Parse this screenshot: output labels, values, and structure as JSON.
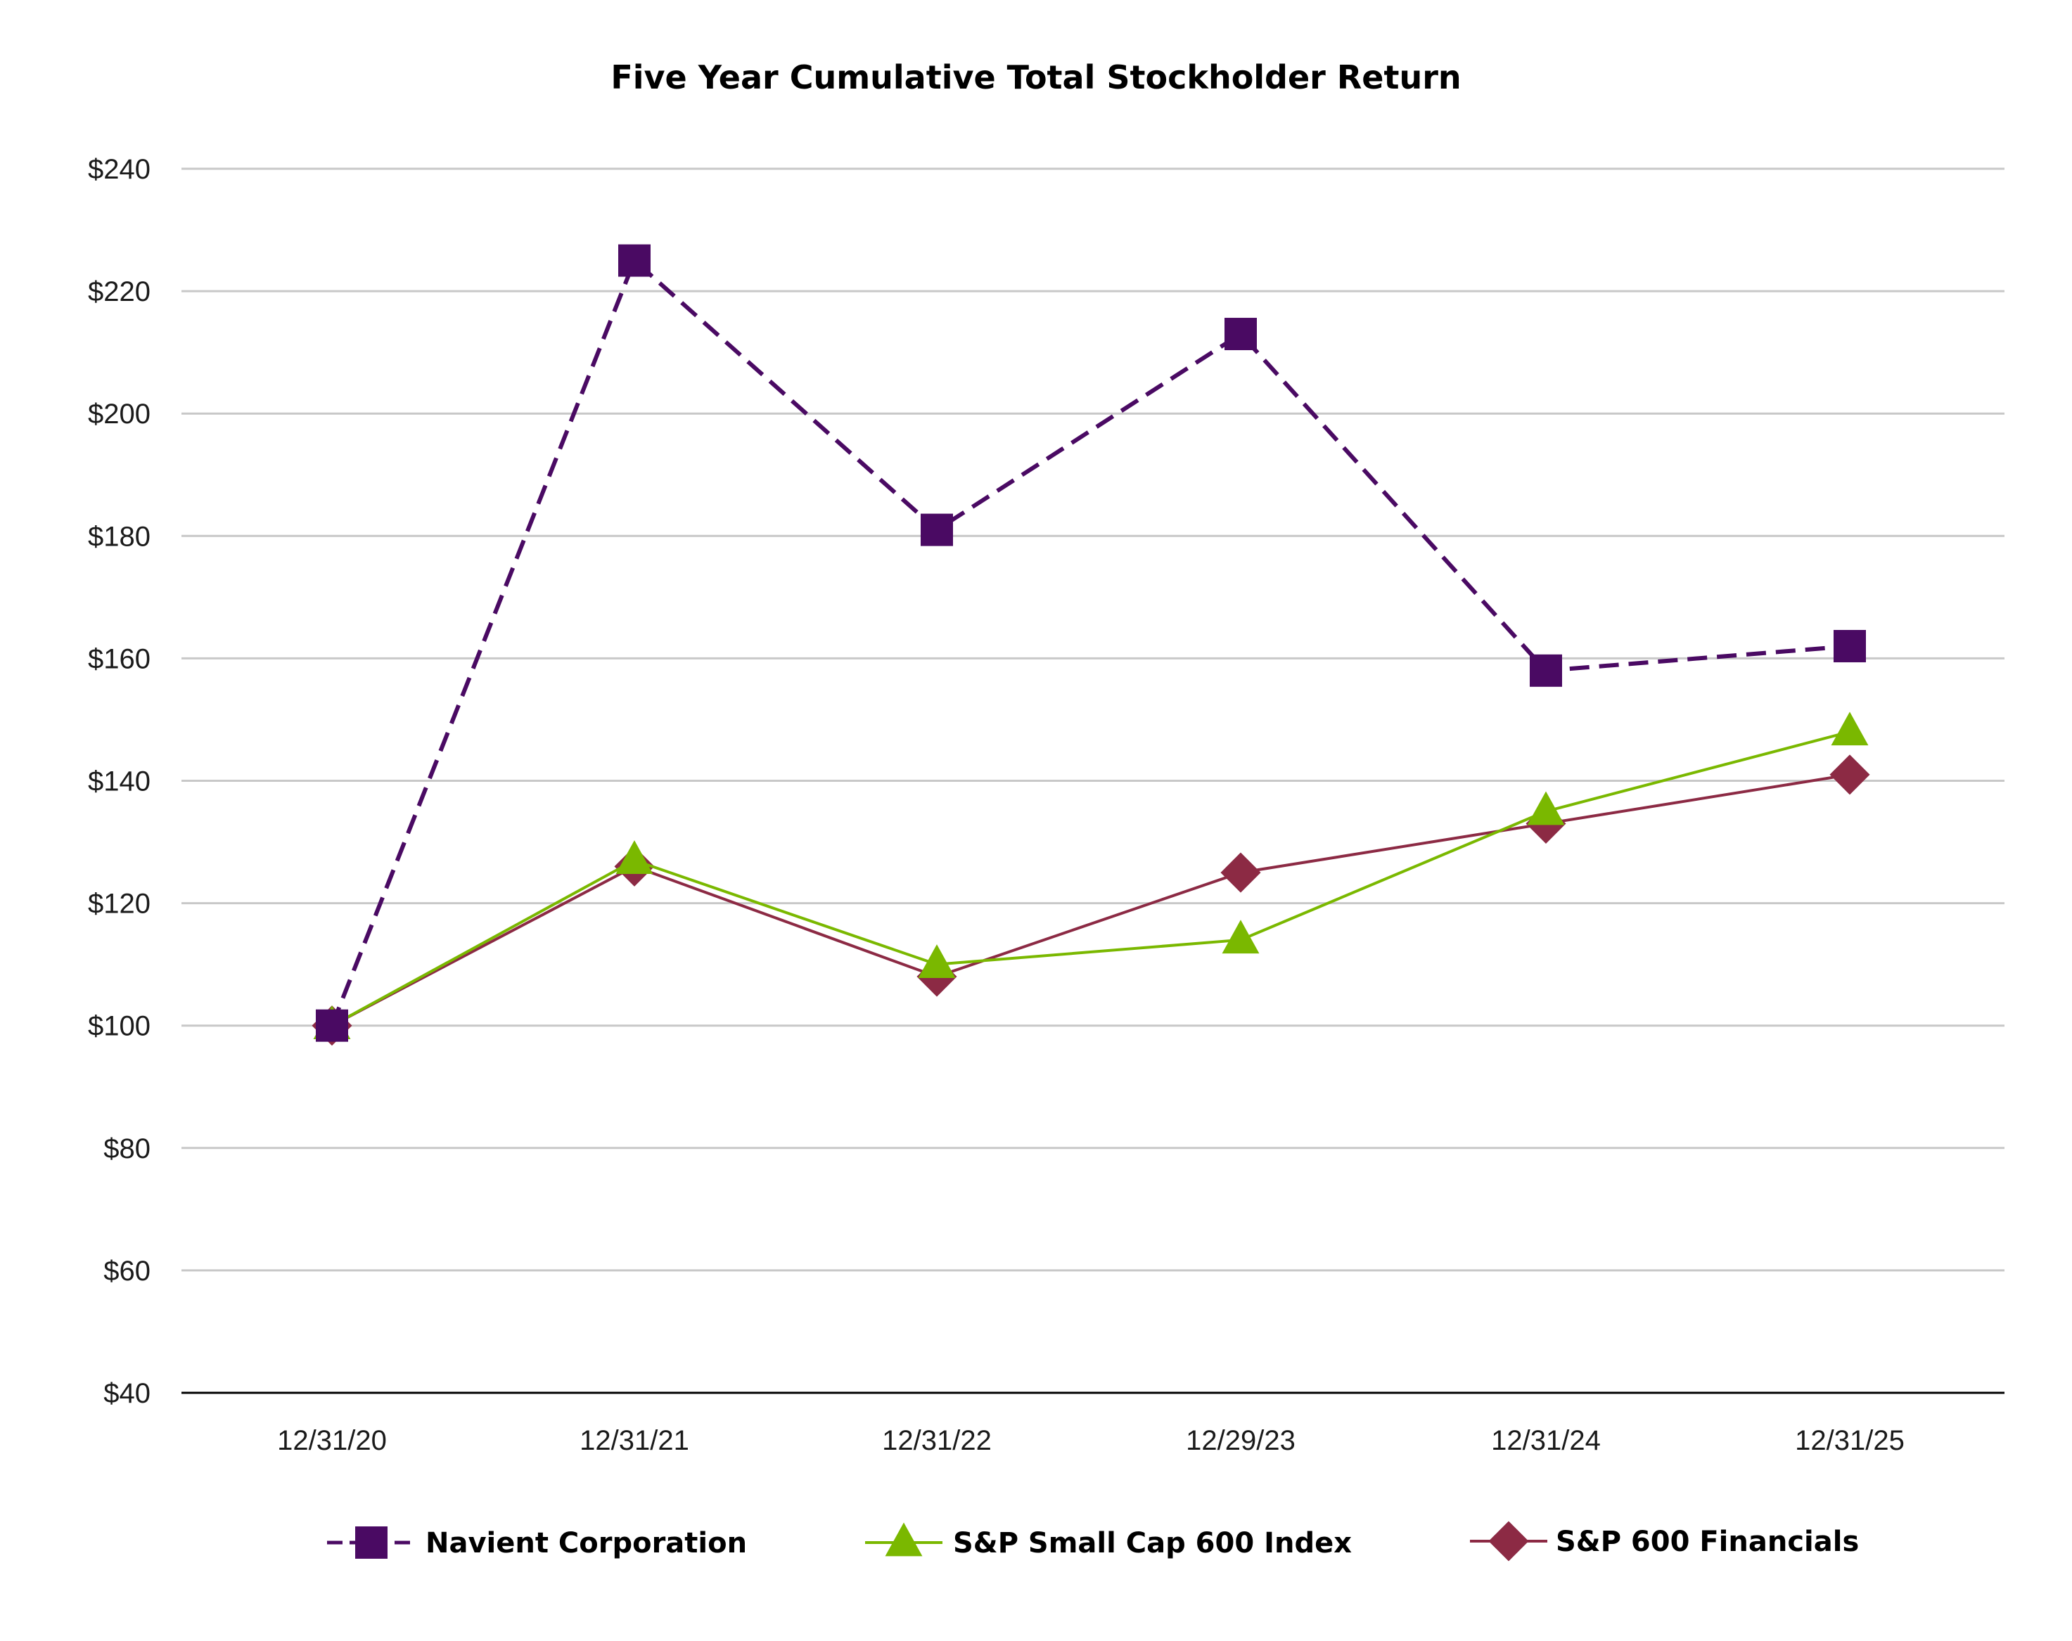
{
  "chart_data": {
    "type": "line",
    "title": "Five Year Cumulative Total Stockholder Return",
    "xlabel": "",
    "ylabel": "",
    "categories": [
      "12/31/20",
      "12/31/21",
      "12/31/22",
      "12/29/23",
      "12/31/24",
      "12/31/25"
    ],
    "ylim": [
      40,
      240
    ],
    "yticks": [
      40,
      60,
      80,
      100,
      120,
      140,
      160,
      180,
      200,
      220,
      240
    ],
    "ytick_labels": [
      "$40",
      "$60",
      "$80",
      "$100",
      "$120",
      "$140",
      "$160",
      "$180",
      "$200",
      "$220",
      "$240"
    ],
    "grid": true,
    "legend_position": "bottom",
    "series": [
      {
        "name": "Navient Corporation",
        "values": [
          100,
          225,
          181,
          213,
          158,
          162
        ],
        "color": "#4a0a63",
        "marker": "square",
        "line_style": "dashed"
      },
      {
        "name": "S&P Small Cap 600 Index",
        "values": [
          100,
          127,
          110,
          114,
          135,
          148
        ],
        "color": "#7ab800",
        "marker": "triangle",
        "line_style": "solid"
      },
      {
        "name": "S&P 600 Financials",
        "values": [
          100,
          126,
          108,
          125,
          133,
          141
        ],
        "color": "#8c2a44",
        "marker": "diamond",
        "line_style": "solid"
      }
    ]
  }
}
